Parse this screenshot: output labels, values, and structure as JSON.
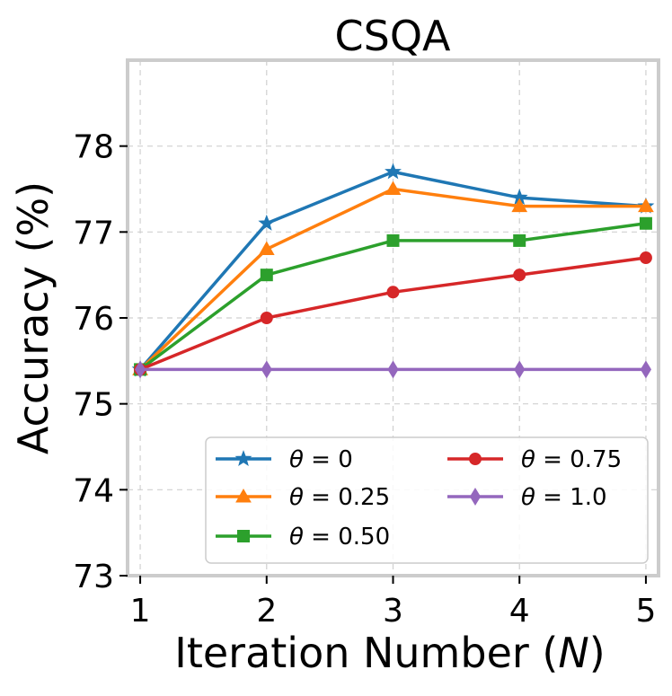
{
  "chart_data": {
    "type": "line",
    "title": "CSQA",
    "xlabel": "Iteration Number (",
    "xlabel_var": "N",
    "xlabel_end": ")",
    "ylabel": "Accuracy (%)",
    "x": [
      1,
      2,
      3,
      4,
      5
    ],
    "xlim": [
      0.9,
      5.1
    ],
    "ylim": [
      73,
      79
    ],
    "yticks": [
      73,
      74,
      75,
      76,
      77,
      78
    ],
    "xticks": [
      1,
      2,
      3,
      4,
      5
    ],
    "grid": true,
    "legend_position": "lower-right",
    "series": [
      {
        "name": "θ = 0",
        "symbol": "θ",
        "rest": " = 0",
        "color": "#1f77b4",
        "marker": "star",
        "values": [
          75.4,
          77.1,
          77.7,
          77.4,
          77.3
        ]
      },
      {
        "name": "θ = 0.25",
        "symbol": "θ",
        "rest": " = 0.25",
        "color": "#ff7f0e",
        "marker": "triangle",
        "values": [
          75.4,
          76.8,
          77.5,
          77.3,
          77.3
        ]
      },
      {
        "name": "θ = 0.50",
        "symbol": "θ",
        "rest": " = 0.50",
        "color": "#2ca02c",
        "marker": "square",
        "values": [
          75.4,
          76.5,
          76.9,
          76.9,
          77.1
        ]
      },
      {
        "name": "θ = 0.75",
        "symbol": "θ",
        "rest": " = 0.75",
        "color": "#d62728",
        "marker": "circle",
        "values": [
          75.4,
          76.0,
          76.3,
          76.5,
          76.7
        ]
      },
      {
        "name": "θ = 1.0",
        "symbol": "θ",
        "rest": " = 1.0",
        "color": "#9467bd",
        "marker": "diamond",
        "values": [
          75.4,
          75.4,
          75.4,
          75.4,
          75.4
        ]
      }
    ]
  }
}
